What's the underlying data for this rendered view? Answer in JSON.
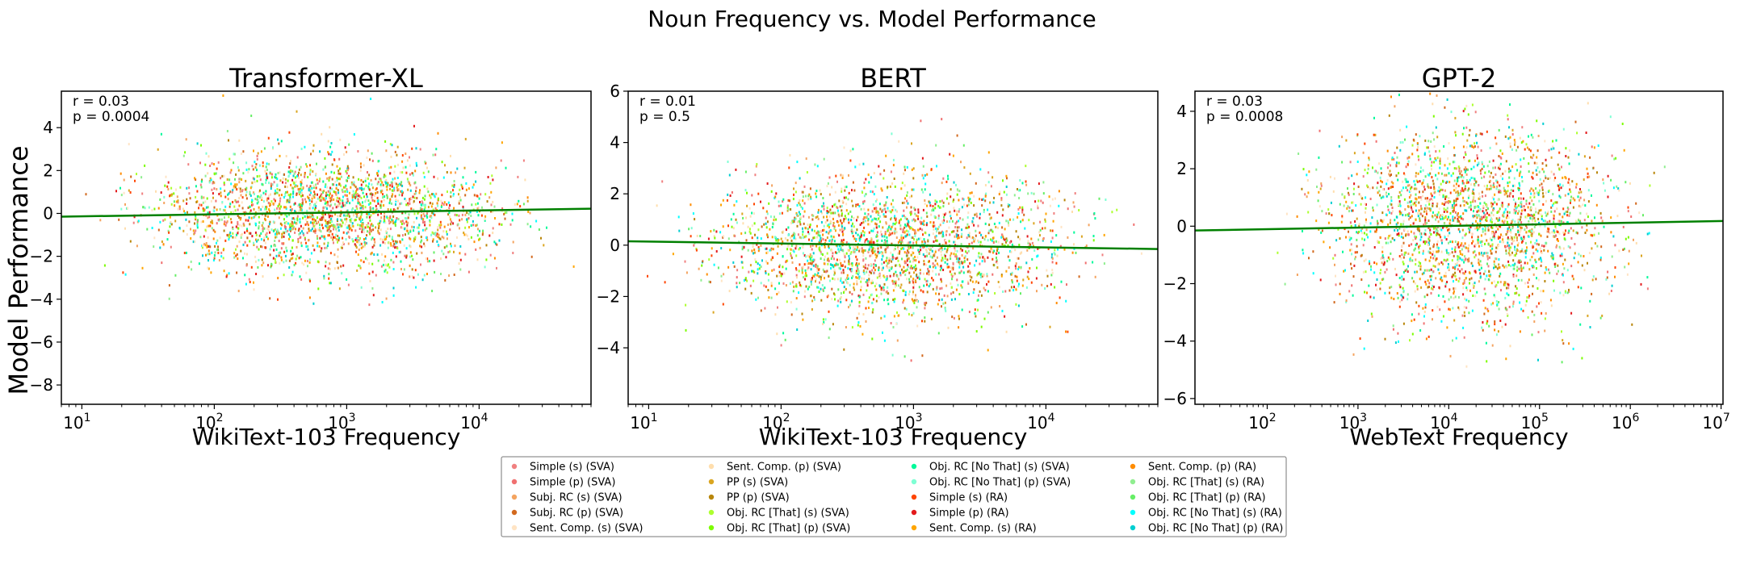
{
  "figure": {
    "suptitle": "Noun Frequency vs. Model Performance"
  },
  "shared_ylabel": "Model Performance",
  "legend": {
    "entries": [
      {
        "label": "Simple (s) (SVA)",
        "color": "#f08080"
      },
      {
        "label": "Simple (p) (SVA)",
        "color": "#f07070"
      },
      {
        "label": "Subj. RC (s) (SVA)",
        "color": "#f4a460"
      },
      {
        "label": "Subj. RC (p) (SVA)",
        "color": "#d2691e"
      },
      {
        "label": "Sent. Comp. (s) (SVA)",
        "color": "#ffe4c4"
      },
      {
        "label": "Sent. Comp. (p) (SVA)",
        "color": "#ffdead"
      },
      {
        "label": "PP (s) (SVA)",
        "color": "#daa520"
      },
      {
        "label": "PP (p) (SVA)",
        "color": "#b8860b"
      },
      {
        "label": "Obj. RC [That] (s) (SVA)",
        "color": "#adff2f"
      },
      {
        "label": "Obj. RC [That] (p) (SVA)",
        "color": "#7cfc00"
      },
      {
        "label": "Obj. RC [No That] (s) (SVA)",
        "color": "#00fa9a"
      },
      {
        "label": "Obj. RC [No That] (p) (SVA)",
        "color": "#7fffd4"
      },
      {
        "label": "Simple (s) (RA)",
        "color": "#ff4500"
      },
      {
        "label": "Simple (p) (RA)",
        "color": "#e31a1c"
      },
      {
        "label": "Sent. Comp. (s) (RA)",
        "color": "#ffa500"
      },
      {
        "label": "Sent. Comp. (p) (RA)",
        "color": "#ff8c00"
      },
      {
        "label": "Obj. RC [That] (s) (RA)",
        "color": "#90ee90"
      },
      {
        "label": "Obj. RC [That] (p) (RA)",
        "color": "#66ee66"
      },
      {
        "label": "Obj. RC [No That] (s) (RA)",
        "color": "#00ffff"
      },
      {
        "label": "Obj. RC [No That] (p) (RA)",
        "color": "#00ced1"
      }
    ]
  },
  "chart_data": [
    {
      "type": "scatter",
      "title": "Transformer-XL",
      "xlabel": "WikiText-103 Frequency",
      "ylabel": "Model Performance",
      "xscale": "log",
      "xlim": [
        7,
        70000
      ],
      "ylim": [
        -8.9,
        5.7
      ],
      "yticks": [
        4,
        2,
        0,
        -2,
        -4,
        -6,
        -8
      ],
      "xticks": [
        {
          "value": 10,
          "base": "10",
          "exp": "1"
        },
        {
          "value": 100,
          "base": "10",
          "exp": "2"
        },
        {
          "value": 1000,
          "base": "10",
          "exp": "3"
        },
        {
          "value": 10000,
          "base": "10",
          "exp": "4"
        }
      ],
      "scatter_x_range": [
        8,
        60000
      ],
      "scatter_y_mean": 0,
      "scatter_y_spread": 1.0,
      "regression_line": {
        "x": [
          7,
          70000
        ],
        "y": [
          -0.15,
          0.22
        ],
        "color": "#008000"
      },
      "annotations": [
        "r = 0.03",
        "p = 0.0004"
      ],
      "grid": false
    },
    {
      "type": "scatter",
      "title": "BERT",
      "xlabel": "WikiText-103 Frequency",
      "ylabel": "",
      "xscale": "log",
      "xlim": [
        7,
        70000
      ],
      "ylim": [
        -6.2,
        6.0
      ],
      "yticks": [
        6,
        4,
        2,
        0,
        -2,
        -4
      ],
      "xticks": [
        {
          "value": 10,
          "base": "10",
          "exp": "1"
        },
        {
          "value": 100,
          "base": "10",
          "exp": "2"
        },
        {
          "value": 1000,
          "base": "10",
          "exp": "3"
        },
        {
          "value": 10000,
          "base": "10",
          "exp": "4"
        }
      ],
      "scatter_x_range": [
        8,
        60000
      ],
      "scatter_y_mean": 0,
      "scatter_y_spread": 1.0,
      "regression_line": {
        "x": [
          7,
          70000
        ],
        "y": [
          0.15,
          -0.15
        ],
        "color": "#008000"
      },
      "annotations": [
        "r = 0.01",
        "p = 0.5"
      ],
      "grid": false
    },
    {
      "type": "scatter",
      "title": "GPT-2",
      "xlabel": "WebText Frequency",
      "ylabel": "",
      "xscale": "log",
      "xlim": [
        16,
        10500000
      ],
      "ylim": [
        -6.2,
        4.7
      ],
      "yticks": [
        4,
        2,
        0,
        -2,
        -4,
        -6
      ],
      "xticks": [
        {
          "value": 100,
          "base": "10",
          "exp": "2"
        },
        {
          "value": 1000,
          "base": "10",
          "exp": "3"
        },
        {
          "value": 10000,
          "base": "10",
          "exp": "4"
        },
        {
          "value": 100000,
          "base": "10",
          "exp": "5"
        },
        {
          "value": 1000000,
          "base": "10",
          "exp": "6"
        },
        {
          "value": 10000000,
          "base": "10",
          "exp": "7"
        }
      ],
      "scatter_x_range": [
        100,
        3000000
      ],
      "scatter_y_mean": 0,
      "scatter_y_spread": 1.2,
      "regression_line": {
        "x": [
          16,
          10500000
        ],
        "y": [
          -0.15,
          0.18
        ],
        "color": "#008000"
      },
      "annotations": [
        "r = 0.03",
        "p = 0.0008"
      ],
      "grid": false
    }
  ]
}
